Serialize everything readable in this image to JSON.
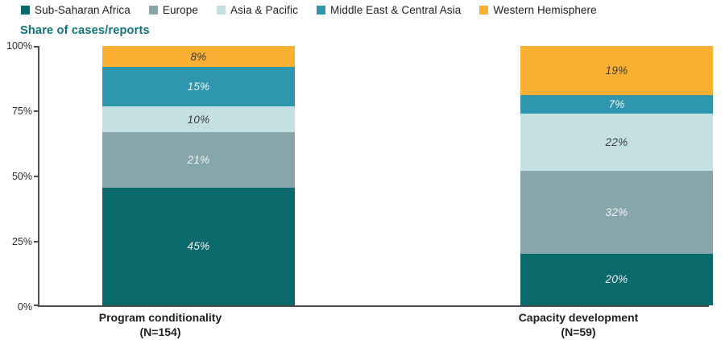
{
  "title": "Share of cases/reports",
  "chart_data": {
    "type": "bar",
    "stacked": true,
    "orientation": "vertical",
    "unit": "%",
    "categories": [
      {
        "label": "Program conditionality",
        "sublabel": "(N=154)"
      },
      {
        "label": "Capacity development",
        "sublabel": "(N=59)"
      }
    ],
    "series": [
      {
        "name": "Sub-Saharan Africa",
        "color": "#0a696b",
        "label_color": "#f2f2f2",
        "values": [
          45,
          20
        ]
      },
      {
        "name": "Europe",
        "color": "#86a6ac",
        "label_color": "#f2f2f2",
        "values": [
          21,
          32
        ]
      },
      {
        "name": "Asia & Pacific",
        "color": "#c5e0e2",
        "label_color": "#3d3d3d",
        "values": [
          10,
          22
        ]
      },
      {
        "name": "Middle East & Central Asia",
        "color": "#2e97ae",
        "label_color": "#f2f2f2",
        "values": [
          15,
          7
        ]
      },
      {
        "name": "Western Hemisphere",
        "color": "#fbb034",
        "label_color": "#3d3d3d",
        "values": [
          8,
          19
        ]
      }
    ],
    "ylabel": "Share of cases/reports",
    "yticks": [
      "0%",
      "25%",
      "50%",
      "75%",
      "100%"
    ],
    "ylim": [
      0,
      100
    ],
    "legend_position": "top",
    "grid": false
  },
  "colors": {
    "title": "#0d7377",
    "axis": "#4d4d4d",
    "tick_label": "#2b2b2b",
    "category_label": "#1f1f1f",
    "legend_label": "#1f1f1f"
  }
}
